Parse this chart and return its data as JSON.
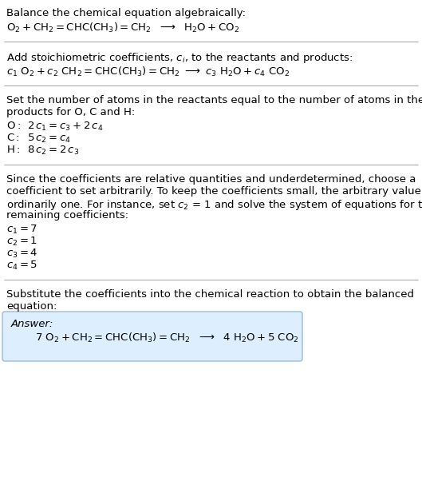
{
  "bg_color": "#ffffff",
  "text_color": "#000000",
  "font_size": 9.5,
  "font_size_eq": 9.5,
  "font_family": "DejaVu Sans",
  "answer_box_color": "#ddeeff",
  "answer_box_edge": "#99bbdd",
  "line_color": "#aaaaaa",
  "section1_title": "Balance the chemical equation algebraically:",
  "section2_title": "Add stoichiometric coefficients, $c_i$, to the reactants and products:",
  "section3_line1": "Set the number of atoms in the reactants equal to the number of atoms in the",
  "section3_line2": "products for O, C and H:",
  "section4_line1": "Since the coefficients are relative quantities and underdetermined, choose a",
  "section4_line2": "coefficient to set arbitrarily. To keep the coefficients small, the arbitrary value is",
  "section4_line3": "ordinarily one. For instance, set $c_2$ = 1 and solve the system of equations for the",
  "section4_line4": "remaining coefficients:",
  "section5_line1": "Substitute the coefficients into the chemical reaction to obtain the balanced",
  "section5_line2": "equation:",
  "answer_label": "Answer:",
  "eq1": "$\\mathrm{O_2 + CH_2{=}CHC(CH_3){=}CH_2 \\ \\ \\longrightarrow \\ \\ H_2O + CO_2}$",
  "eq2": "$c_1\\ \\mathrm{O_2} + c_2\\ \\mathrm{CH_2{=}CHC(CH_3){=}CH_2} \\ \\longrightarrow \\ c_3\\ \\mathrm{H_2O} + c_4\\ \\mathrm{CO_2}$",
  "eq_O": "$\\mathrm{O:}$",
  "eq_O_rhs": "$2\\,c_1 = c_3 + 2\\,c_4$",
  "eq_C": "$\\mathrm{C:}$",
  "eq_C_rhs": "$5\\,c_2 = c_4$",
  "eq_H": "$\\mathrm{H:}$",
  "eq_H_rhs": "$8\\,c_2 = 2\\,c_3$",
  "coeff1": "$c_1 = 7$",
  "coeff2": "$c_2 = 1$",
  "coeff3": "$c_3 = 4$",
  "coeff4": "$c_4 = 5$",
  "eq_final": "$7\\ \\mathrm{O_2 + CH_2{=}CHC(CH_3){=}CH_2 \\ \\ \\longrightarrow \\ \\ 4\\ H_2O + 5\\ CO_2}$"
}
